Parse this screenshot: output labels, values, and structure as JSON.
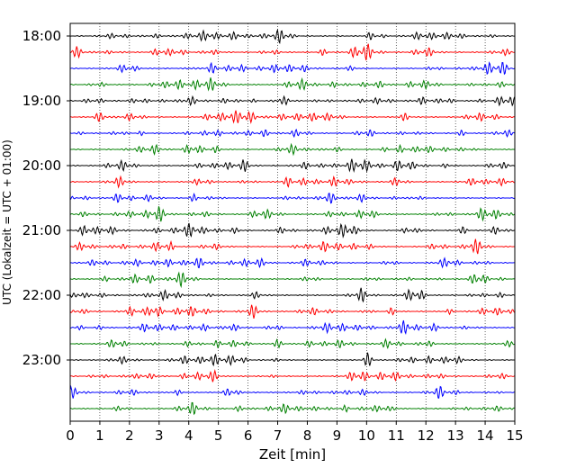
{
  "chart_data": {
    "type": "line",
    "title": "",
    "xlabel": "Zeit  [min]",
    "ylabel": "UTC (Lokalzeit = UTC + 01:00)",
    "xlim": [
      0,
      15
    ],
    "x_ticks": [
      "0",
      "1",
      "2",
      "3",
      "4",
      "5",
      "6",
      "7",
      "8",
      "9",
      "10",
      "11",
      "12",
      "13",
      "14",
      "15"
    ],
    "y_tick_labels": [
      "18:00",
      "19:00",
      "20:00",
      "21:00",
      "22:00",
      "23:00"
    ],
    "trace_start": "18:00",
    "trace_minutes": 15,
    "trace_count": 24,
    "trace_colors": [
      "#000000",
      "#ff0000",
      "#0000ff",
      "#008000"
    ],
    "grid": "vertical dotted"
  }
}
